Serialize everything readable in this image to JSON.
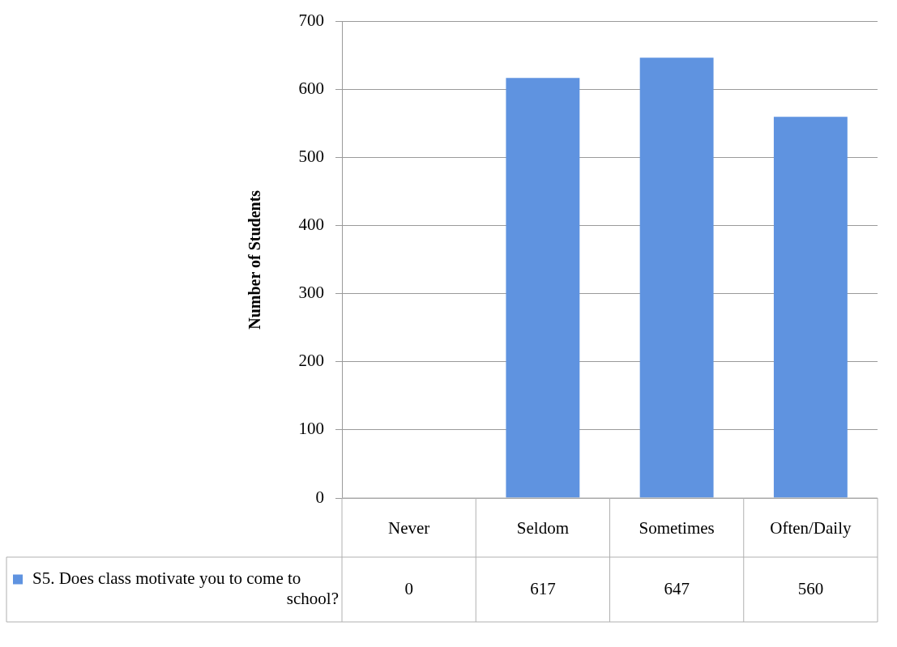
{
  "chart_data": {
    "type": "bar",
    "ylabel": "Number of Students",
    "categories": [
      "Never",
      "Seldom",
      "Sometimes",
      "Often/Daily"
    ],
    "series": [
      {
        "name": "S5. Does class motivate you to come to school?",
        "color": "#5f93e0",
        "values": [
          0,
          617,
          647,
          560
        ]
      }
    ],
    "ylim": [
      0,
      700
    ],
    "yticks": [
      0,
      100,
      200,
      300,
      400,
      500,
      600,
      700
    ],
    "grid": "y",
    "data_labels": true
  }
}
